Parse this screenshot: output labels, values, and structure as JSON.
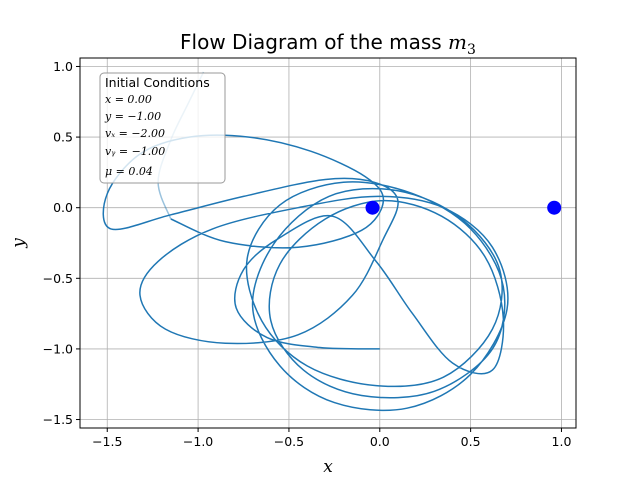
{
  "chart_data": {
    "type": "line",
    "title": "Flow Diagram of the mass m₃",
    "title_main": "Flow Diagram of the mass ",
    "title_symbol": "m",
    "title_sub": "3",
    "xlabel": "x",
    "ylabel": "y",
    "xlim": [
      -1.65,
      1.08
    ],
    "ylim": [
      -1.56,
      1.06
    ],
    "xticks": [
      -1.5,
      -1.0,
      -0.5,
      0.0,
      0.5,
      1.0
    ],
    "xtick_labels": [
      "−1.5",
      "−1.0",
      "−0.5",
      "0.0",
      "0.5",
      "1.0"
    ],
    "yticks": [
      -1.5,
      -1.0,
      -0.5,
      0.0,
      0.5,
      1.0
    ],
    "ytick_labels": [
      "−1.5",
      "−1.0",
      "−0.5",
      "0.0",
      "0.5",
      "1.0"
    ],
    "grid": true,
    "legend_box": {
      "placement": "top-left",
      "heading": "Initial Conditions",
      "lines": [
        "x = 0.00",
        "y = −1.00",
        "vₓ = −2.00",
        "vᵧ = −1.00",
        "μ = 0.04"
      ]
    },
    "masses": [
      {
        "x": -0.04,
        "y": 0.0
      },
      {
        "x": 0.96,
        "y": 0.0
      }
    ],
    "mass_color": "#0000ff",
    "trajectory_color": "#1f77b4",
    "trajectory": [
      {
        "x": 0.0,
        "y": -1.0
      },
      {
        "x": -0.33,
        "y": -0.99
      },
      {
        "x": -0.62,
        "y": -0.92
      },
      {
        "x": -0.79,
        "y": -0.71
      },
      {
        "x": -0.75,
        "y": -0.44
      },
      {
        "x": -0.56,
        "y": -0.22
      },
      {
        "x": -0.26,
        "y": -0.06
      },
      {
        "x": 0.0,
        "y": 0.0
      },
      {
        "x": 0.04,
        "y": 0.07
      },
      {
        "x": -0.08,
        "y": 0.14
      },
      {
        "x": -0.35,
        "y": 0.22
      },
      {
        "x": -0.65,
        "y": 0.31
      },
      {
        "x": -0.9,
        "y": 0.4
      },
      {
        "x": -1.08,
        "y": 0.56
      },
      {
        "x": -1.13,
        "y": 0.72
      },
      {
        "x": -1.05,
        "y": 0.86
      },
      {
        "x": -0.93,
        "y": 0.96
      }
    ],
    "trajectory_full": [
      {
        "x": 0.0,
        "y": -1.0
      },
      {
        "x": -0.33,
        "y": -0.99
      },
      {
        "x": -0.62,
        "y": -0.92
      },
      {
        "x": -0.79,
        "y": -0.71
      },
      {
        "x": -0.75,
        "y": -0.44
      },
      {
        "x": -0.56,
        "y": -0.22
      },
      {
        "x": -0.26,
        "y": -0.06
      },
      {
        "x": -0.02,
        "y": -0.38
      },
      {
        "x": 0.18,
        "y": -0.75
      },
      {
        "x": 0.4,
        "y": -1.1
      },
      {
        "x": 0.62,
        "y": -1.15
      },
      {
        "x": 0.68,
        "y": -0.78
      },
      {
        "x": 0.58,
        "y": -0.35
      },
      {
        "x": 0.34,
        "y": -0.06
      },
      {
        "x": 0.02,
        "y": 0.05
      },
      {
        "x": -0.3,
        "y": -0.08
      },
      {
        "x": -0.55,
        "y": -0.4
      },
      {
        "x": -0.6,
        "y": -0.8
      },
      {
        "x": -0.42,
        "y": -1.15
      },
      {
        "x": -0.1,
        "y": -1.33
      },
      {
        "x": 0.3,
        "y": -1.3
      },
      {
        "x": 0.62,
        "y": -1.0
      },
      {
        "x": 0.68,
        "y": -0.56
      },
      {
        "x": 0.5,
        "y": -0.15
      },
      {
        "x": 0.18,
        "y": 0.1
      },
      {
        "x": -0.2,
        "y": 0.18
      },
      {
        "x": -0.55,
        "y": 0.02
      },
      {
        "x": -0.73,
        "y": -0.36
      },
      {
        "x": -0.65,
        "y": -0.8
      },
      {
        "x": -0.4,
        "y": -1.12
      },
      {
        "x": -0.02,
        "y": -1.26
      },
      {
        "x": 0.35,
        "y": -1.2
      },
      {
        "x": 0.62,
        "y": -0.86
      },
      {
        "x": 0.66,
        "y": -0.44
      },
      {
        "x": 0.45,
        "y": -0.08
      },
      {
        "x": 0.1,
        "y": 0.12
      },
      {
        "x": -0.28,
        "y": 0.08
      },
      {
        "x": -0.58,
        "y": -0.25
      },
      {
        "x": -0.7,
        "y": -0.7
      },
      {
        "x": -0.55,
        "y": -1.12
      },
      {
        "x": -0.25,
        "y": -1.38
      },
      {
        "x": 0.15,
        "y": -1.42
      },
      {
        "x": 0.5,
        "y": -1.18
      },
      {
        "x": 0.7,
        "y": -0.72
      },
      {
        "x": 0.62,
        "y": -0.28
      },
      {
        "x": 0.35,
        "y": 0.0
      },
      {
        "x": -0.01,
        "y": 0.08
      },
      {
        "x": -0.45,
        "y": 0.0
      },
      {
        "x": -0.92,
        "y": -0.15
      },
      {
        "x": -1.22,
        "y": -0.38
      },
      {
        "x": -1.32,
        "y": -0.62
      },
      {
        "x": -1.18,
        "y": -0.86
      },
      {
        "x": -0.85,
        "y": -0.96
      },
      {
        "x": -0.45,
        "y": -0.9
      },
      {
        "x": -0.15,
        "y": -0.62
      },
      {
        "x": 0.02,
        "y": -0.22
      },
      {
        "x": 0.1,
        "y": 0.05
      },
      {
        "x": -0.03,
        "y": 0.18
      },
      {
        "x": -0.3,
        "y": 0.2
      },
      {
        "x": -0.75,
        "y": 0.08
      },
      {
        "x": -1.15,
        "y": -0.05
      },
      {
        "x": -1.48,
        "y": -0.15
      },
      {
        "x": -1.5,
        "y": 0.1
      },
      {
        "x": -1.32,
        "y": 0.38
      },
      {
        "x": -1.05,
        "y": 0.5
      },
      {
        "x": -0.72,
        "y": 0.5
      },
      {
        "x": -0.38,
        "y": 0.4
      },
      {
        "x": -0.08,
        "y": 0.22
      },
      {
        "x": 0.02,
        "y": 0.05
      },
      {
        "x": -0.1,
        "y": -0.16
      },
      {
        "x": -0.45,
        "y": -0.28
      },
      {
        "x": -0.85,
        "y": -0.24
      },
      {
        "x": -1.15,
        "y": -0.08
      },
      {
        "x": -1.22,
        "y": 0.18
      },
      {
        "x": -1.15,
        "y": 0.48
      },
      {
        "x": -1.05,
        "y": 0.75
      },
      {
        "x": -0.97,
        "y": 0.96
      }
    ]
  }
}
